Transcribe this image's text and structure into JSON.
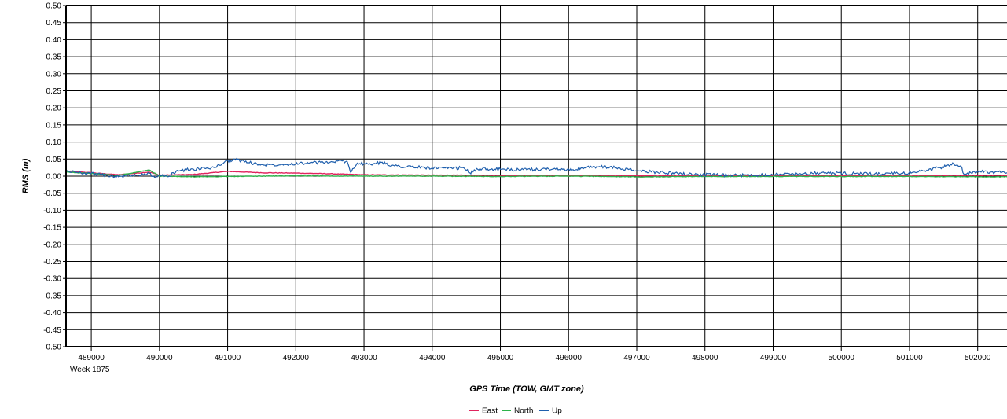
{
  "chart_data": {
    "type": "line",
    "title": "",
    "xlabel": "GPS Time (TOW, GMT zone)",
    "ylabel": "RMS (m)",
    "x_sublabel": "Week 1875",
    "xlim": [
      488630,
      502430
    ],
    "ylim": [
      -0.5,
      0.5
    ],
    "x_ticks": [
      489000,
      490000,
      491000,
      492000,
      493000,
      494000,
      495000,
      496000,
      497000,
      498000,
      499000,
      500000,
      501000,
      502000
    ],
    "y_ticks": [
      0.5,
      0.45,
      0.4,
      0.35,
      0.3,
      0.25,
      0.2,
      0.15,
      0.1,
      0.05,
      0.0,
      -0.05,
      -0.1,
      -0.15,
      -0.2,
      -0.25,
      -0.3,
      -0.35,
      -0.4,
      -0.45,
      -0.5
    ],
    "y_tick_labels": [
      "0.50",
      "0.45",
      "0.40",
      "0.35",
      "0.30",
      "0.25",
      "0.20",
      "0.15",
      "0.10",
      "0.05",
      "0.00",
      "-0.05",
      "-0.10",
      "-0.15",
      "-0.20",
      "-0.25",
      "-0.30",
      "-0.35",
      "-0.40",
      "-0.45",
      "-0.50"
    ],
    "grid": true,
    "legend_position": "bottom-center",
    "series": [
      {
        "name": "East",
        "color": "#e0245e",
        "x": [
          488630,
          489000,
          489400,
          489850,
          490000,
          490500,
          491000,
          491500,
          492000,
          492500,
          493000,
          494000,
          495000,
          496000,
          497000,
          498000,
          499000,
          500000,
          501000,
          501800,
          502430
        ],
        "y": [
          0.015,
          0.01,
          0.004,
          0.012,
          0.003,
          0.005,
          0.014,
          0.01,
          0.009,
          0.007,
          0.004,
          0.003,
          0.002,
          0.002,
          0.001,
          0.001,
          0.001,
          0.001,
          0.001,
          0.002,
          0.002
        ]
      },
      {
        "name": "North",
        "color": "#2db34a",
        "x": [
          488630,
          489000,
          489400,
          489850,
          490000,
          490500,
          491000,
          492000,
          493000,
          494000,
          495000,
          496000,
          497000,
          498000,
          499000,
          500000,
          501000,
          502000,
          502430
        ],
        "y": [
          0.012,
          0.008,
          0.002,
          0.018,
          0.0,
          -0.002,
          -0.001,
          0.001,
          0.0,
          0.0,
          -0.001,
          0.0,
          -0.002,
          -0.001,
          -0.001,
          -0.001,
          -0.001,
          -0.002,
          -0.002
        ]
      },
      {
        "name": "Up",
        "color": "#1f5fad",
        "x": [
          488630,
          488900,
          489150,
          489400,
          489600,
          489850,
          489900,
          490150,
          490250,
          490500,
          490800,
          490950,
          491100,
          491300,
          491550,
          491800,
          492100,
          492400,
          492750,
          492800,
          492900,
          493100,
          493250,
          493450,
          493700,
          494000,
          494300,
          494450,
          494550,
          494700,
          495000,
          495300,
          495600,
          495900,
          496050,
          496200,
          496450,
          496700,
          497000,
          497300,
          497600,
          497900,
          498200,
          498500,
          498800,
          499100,
          499400,
          499700,
          500000,
          500300,
          500600,
          500900,
          501200,
          501450,
          501650,
          501750,
          501800,
          502000,
          502200,
          502430
        ],
        "y": [
          0.014,
          0.01,
          0.004,
          -0.002,
          0.002,
          0.008,
          -0.001,
          0.0,
          0.016,
          0.02,
          0.025,
          0.04,
          0.05,
          0.04,
          0.032,
          0.035,
          0.038,
          0.04,
          0.044,
          0.012,
          0.038,
          0.034,
          0.04,
          0.03,
          0.027,
          0.024,
          0.022,
          0.025,
          0.01,
          0.022,
          0.02,
          0.018,
          0.02,
          0.022,
          0.018,
          0.024,
          0.028,
          0.024,
          0.015,
          0.012,
          0.008,
          0.005,
          0.003,
          0.002,
          0.004,
          0.006,
          0.007,
          0.009,
          0.008,
          0.007,
          0.006,
          0.008,
          0.015,
          0.025,
          0.035,
          0.03,
          0.005,
          0.015,
          0.012,
          0.01
        ]
      }
    ]
  }
}
